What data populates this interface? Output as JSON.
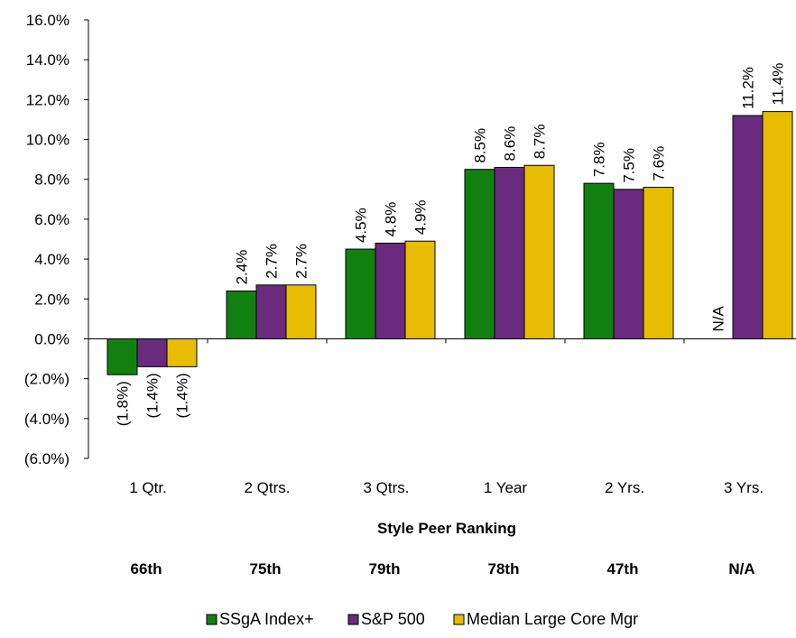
{
  "chart_data": {
    "type": "bar",
    "categories": [
      "1 Qtr.",
      "2 Qtrs.",
      "3 Qtrs.",
      "1 Year",
      "2 Yrs.",
      "3 Yrs."
    ],
    "ylim": [
      -6,
      16
    ],
    "y_ticks": [
      {
        "value": 16,
        "label": "16.0%"
      },
      {
        "value": 14,
        "label": "14.0%"
      },
      {
        "value": 12,
        "label": "12.0%"
      },
      {
        "value": 10,
        "label": "10.0%"
      },
      {
        "value": 8,
        "label": "8.0%"
      },
      {
        "value": 6,
        "label": "6.0%"
      },
      {
        "value": 4,
        "label": "4.0%"
      },
      {
        "value": 2,
        "label": "2.0%"
      },
      {
        "value": 0,
        "label": "0.0%"
      },
      {
        "value": -2,
        "label": "(2.0%)"
      },
      {
        "value": -4,
        "label": "(4.0%)"
      },
      {
        "value": -6,
        "label": "(6.0%)"
      }
    ],
    "series": [
      {
        "name": "SSgA Index+",
        "color": "#118011",
        "values": [
          -1.8,
          2.4,
          4.5,
          8.5,
          7.8,
          null
        ],
        "labels": [
          "(1.8%)",
          "2.4%",
          "4.5%",
          "8.5%",
          "7.8%",
          "N/A"
        ]
      },
      {
        "name": "S&P 500",
        "color": "#6a2a7e",
        "values": [
          -1.4,
          2.7,
          4.8,
          8.6,
          7.5,
          11.2
        ],
        "labels": [
          "(1.4%)",
          "2.7%",
          "4.8%",
          "8.6%",
          "7.5%",
          "11.2%"
        ]
      },
      {
        "name": "Median Large Core Mgr",
        "color": "#e8bc00",
        "values": [
          -1.4,
          2.7,
          4.9,
          8.7,
          7.6,
          11.4
        ],
        "labels": [
          "(1.4%)",
          "2.7%",
          "4.9%",
          "8.7%",
          "7.6%",
          "11.4%"
        ]
      }
    ],
    "grid": false,
    "legend_position": "bottom"
  },
  "peer_ranking": {
    "title": "Style Peer Ranking",
    "ranks": [
      "66th",
      "75th",
      "79th",
      "78th",
      "47th",
      "N/A"
    ]
  }
}
